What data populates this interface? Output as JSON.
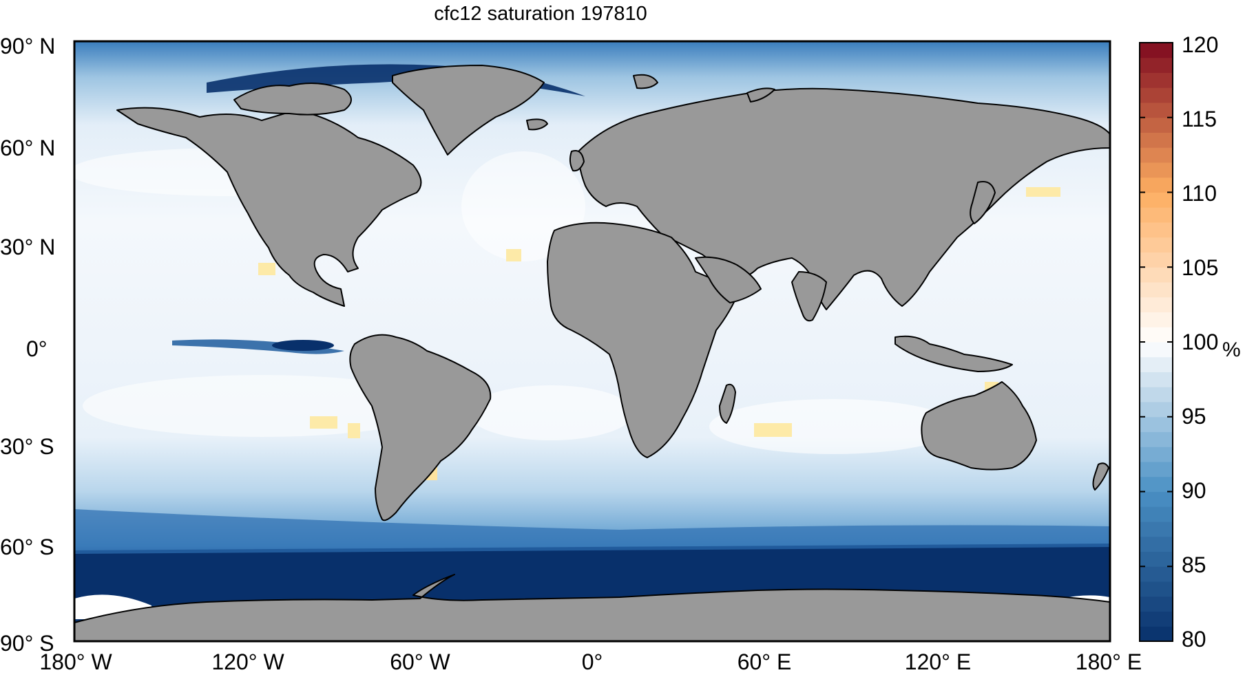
{
  "title": "cfc12 saturation 197810",
  "lat_labels": [
    "90° N",
    "60° N",
    "30° N",
    "0°",
    "30° S",
    "60° S",
    "90° S"
  ],
  "lon_labels": [
    "180° W",
    "120° W",
    "60° W",
    "0°",
    "60° E",
    "120° E",
    "180° E"
  ],
  "colorbar": {
    "ticks": [
      "120",
      "115",
      "110",
      "105",
      "100",
      "95",
      "90",
      "85",
      "80"
    ],
    "unit": "%",
    "range": [
      80,
      120
    ],
    "colors": {
      "low": "#08306b",
      "mid_low": "#4a90c4",
      "neutral": "#ffffff",
      "mid_high": "#fdae61",
      "high": "#7f0a1f"
    }
  },
  "map": {
    "land_color": "#999999",
    "ocean_typical_color": "#dce9f5"
  }
}
